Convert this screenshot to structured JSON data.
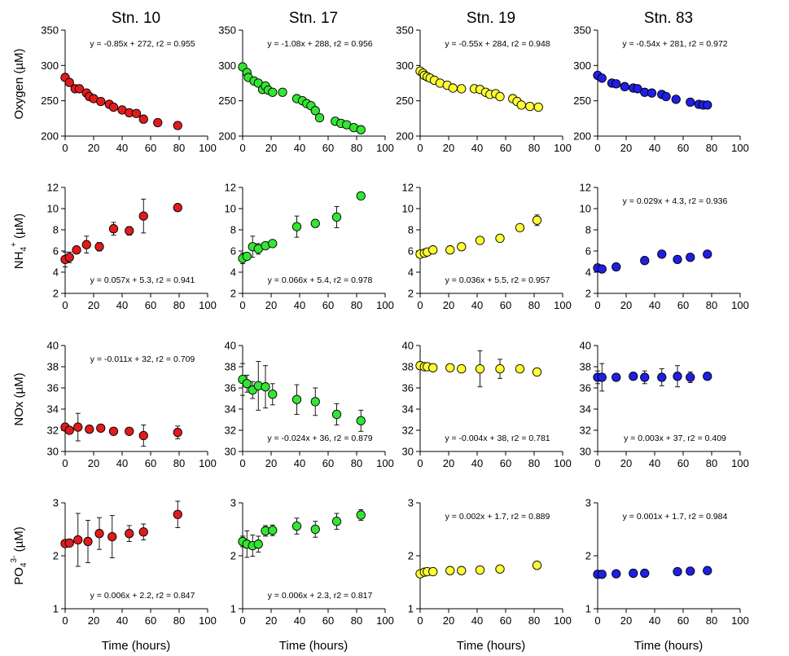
{
  "figure": {
    "xlabel": "Time (hours)",
    "station_titles": [
      "Stn. 10",
      "Stn. 17",
      "Stn. 19",
      "Stn. 83"
    ],
    "row_labels": {
      "oxygen": "Oxygen (µM)",
      "nh4": {
        "base": "NH",
        "sub": "4",
        "sup": "+",
        "unit": "(µM)"
      },
      "nox": "NOx (µM)",
      "po4": {
        "base": "PO",
        "sub": "4",
        "sup": "3-",
        "unit": "(µM)"
      }
    },
    "colors": {
      "Stn. 10": "#e31a1c",
      "Stn. 17": "#33e633",
      "Stn. 19": "#ffff33",
      "Stn. 83": "#1f1fe6"
    }
  },
  "chart_data": [
    {
      "type": "scatter",
      "row": "Oxygen",
      "station": "Stn. 10",
      "xlim": [
        0,
        100
      ],
      "ylim": [
        200,
        350
      ],
      "yticks": [
        200,
        250,
        300,
        350
      ],
      "xticks": [
        0,
        20,
        40,
        60,
        80,
        100
      ],
      "annotation": "y = -0.85x + 272, r2 = 0.955",
      "ann_pos": "top",
      "points": [
        [
          0,
          283
        ],
        [
          3,
          276
        ],
        [
          7,
          267
        ],
        [
          10,
          267
        ],
        [
          15,
          261
        ],
        [
          17,
          256
        ],
        [
          20,
          253
        ],
        [
          25,
          249
        ],
        [
          31,
          245
        ],
        [
          34,
          241
        ],
        [
          40,
          237
        ],
        [
          45,
          233
        ],
        [
          50,
          232
        ],
        [
          55,
          224
        ],
        [
          65,
          219
        ],
        [
          79,
          215
        ]
      ]
    },
    {
      "type": "scatter",
      "row": "Oxygen",
      "station": "Stn. 17",
      "xlim": [
        0,
        100
      ],
      "ylim": [
        200,
        350
      ],
      "yticks": [
        200,
        250,
        300,
        350
      ],
      "xticks": [
        0,
        20,
        40,
        60,
        80,
        100
      ],
      "annotation": "y = -1.08x + 288, r2 = 0.956",
      "ann_pos": "top",
      "points": [
        [
          0,
          298
        ],
        [
          3,
          290
        ],
        [
          4,
          283
        ],
        [
          8,
          278
        ],
        [
          11,
          275
        ],
        [
          14,
          266
        ],
        [
          16,
          271
        ],
        [
          18,
          265
        ],
        [
          21,
          262
        ],
        [
          28,
          262
        ],
        [
          38,
          253
        ],
        [
          42,
          250
        ],
        [
          45,
          246
        ],
        [
          48,
          243
        ],
        [
          51,
          236
        ],
        [
          54,
          226
        ],
        [
          65,
          221
        ],
        [
          69,
          218
        ],
        [
          73,
          216
        ],
        [
          78,
          212
        ],
        [
          83,
          209
        ]
      ]
    },
    {
      "type": "scatter",
      "row": "Oxygen",
      "station": "Stn. 19",
      "xlim": [
        0,
        100
      ],
      "ylim": [
        200,
        350
      ],
      "yticks": [
        200,
        250,
        300,
        350
      ],
      "xticks": [
        0,
        20,
        40,
        60,
        80,
        100
      ],
      "annotation": "y = -0.55x + 284, r2 = 0.948",
      "ann_pos": "top",
      "points": [
        [
          0,
          292
        ],
        [
          2,
          289
        ],
        [
          3,
          286
        ],
        [
          5,
          284
        ],
        [
          7,
          282
        ],
        [
          10,
          279
        ],
        [
          14,
          275
        ],
        [
          19,
          272
        ],
        [
          23,
          268
        ],
        [
          29,
          267
        ],
        [
          38,
          267
        ],
        [
          42,
          266
        ],
        [
          46,
          262
        ],
        [
          49,
          259
        ],
        [
          53,
          260
        ],
        [
          56,
          256
        ],
        [
          65,
          253
        ],
        [
          68,
          249
        ],
        [
          71,
          244
        ],
        [
          77,
          242
        ],
        [
          83,
          241
        ]
      ]
    },
    {
      "type": "scatter",
      "row": "Oxygen",
      "station": "Stn. 83",
      "xlim": [
        0,
        100
      ],
      "ylim": [
        200,
        350
      ],
      "yticks": [
        200,
        250,
        300,
        350
      ],
      "xticks": [
        0,
        20,
        40,
        60,
        80,
        100
      ],
      "annotation": "y = -0.54x + 281, r2 = 0.972",
      "ann_pos": "top",
      "points": [
        [
          0,
          286
        ],
        [
          3,
          282
        ],
        [
          10,
          275
        ],
        [
          13,
          274
        ],
        [
          19,
          270
        ],
        [
          25,
          268
        ],
        [
          28,
          267
        ],
        [
          33,
          262
        ],
        [
          38,
          261
        ],
        [
          45,
          259
        ],
        [
          48,
          256
        ],
        [
          55,
          252
        ],
        [
          65,
          248
        ],
        [
          71,
          245
        ],
        [
          74,
          244
        ],
        [
          77,
          244
        ]
      ]
    },
    {
      "type": "scatter",
      "row": "NH4+",
      "station": "Stn. 10",
      "xlim": [
        0,
        100
      ],
      "ylim": [
        2,
        12
      ],
      "yticks": [
        2,
        4,
        6,
        8,
        10,
        12
      ],
      "xticks": [
        0,
        20,
        40,
        60,
        80,
        100
      ],
      "annotation": "y = 0.057x + 5.3, r2 = 0.941",
      "ann_pos": "bottom",
      "points": [
        [
          0,
          5.2,
          0.7
        ],
        [
          3,
          5.4,
          0.5
        ],
        [
          8,
          6.1,
          0.3
        ],
        [
          15,
          6.6,
          0.8
        ],
        [
          24,
          6.4,
          0.4
        ],
        [
          34,
          8.1,
          0.6
        ],
        [
          45,
          7.9,
          0.4
        ],
        [
          55,
          9.3,
          1.6
        ],
        [
          79,
          10.1,
          0.2
        ]
      ]
    },
    {
      "type": "scatter",
      "row": "NH4+",
      "station": "Stn. 17",
      "xlim": [
        0,
        100
      ],
      "ylim": [
        2,
        12
      ],
      "yticks": [
        2,
        4,
        6,
        8,
        10,
        12
      ],
      "xticks": [
        0,
        20,
        40,
        60,
        80,
        100
      ],
      "annotation": "y = 0.066x + 5.4, r2 = 0.978",
      "ann_pos": "bottom",
      "points": [
        [
          0,
          5.3,
          0.5
        ],
        [
          3,
          5.5,
          0.4
        ],
        [
          7,
          6.4,
          1.0
        ],
        [
          11,
          6.2,
          0.5
        ],
        [
          16,
          6.5,
          0.4
        ],
        [
          21,
          6.7,
          0.2
        ],
        [
          38,
          8.3,
          1.0
        ],
        [
          51,
          8.6,
          0.2
        ],
        [
          66,
          9.2,
          1.0
        ],
        [
          83,
          11.2,
          0.3
        ]
      ]
    },
    {
      "type": "scatter",
      "row": "NH4+",
      "station": "Stn. 19",
      "xlim": [
        0,
        100
      ],
      "ylim": [
        2,
        12
      ],
      "yticks": [
        2,
        4,
        6,
        8,
        10,
        12
      ],
      "xticks": [
        0,
        20,
        40,
        60,
        80,
        100
      ],
      "annotation": "y = 0.036x + 5.5, r2 = 0.957",
      "ann_pos": "bottom",
      "points": [
        [
          0,
          5.7,
          0.2
        ],
        [
          3,
          5.8,
          0.2
        ],
        [
          5,
          5.9,
          0.2
        ],
        [
          9,
          6.1,
          0.2
        ],
        [
          21,
          6.1,
          0.3
        ],
        [
          29,
          6.4,
          0.2
        ],
        [
          42,
          7.0,
          0.4
        ],
        [
          56,
          7.2,
          0.2
        ],
        [
          70,
          8.2,
          0.2
        ],
        [
          82,
          8.9,
          0.5
        ]
      ]
    },
    {
      "type": "scatter",
      "row": "NH4+",
      "station": "Stn. 83",
      "xlim": [
        0,
        100
      ],
      "ylim": [
        2,
        12
      ],
      "yticks": [
        2,
        4,
        6,
        8,
        10,
        12
      ],
      "xticks": [
        0,
        20,
        40,
        60,
        80,
        100
      ],
      "annotation": "y = 0.029x + 4.3, r2 = 0.936",
      "ann_pos": "top",
      "points": [
        [
          0,
          4.4,
          0.2
        ],
        [
          3,
          4.3,
          0.2
        ],
        [
          13,
          4.5,
          0.4
        ],
        [
          33,
          5.1,
          0.2
        ],
        [
          45,
          5.7,
          0.2
        ],
        [
          56,
          5.2,
          0.2
        ],
        [
          65,
          5.4,
          0.2
        ],
        [
          77,
          5.7,
          0.3
        ]
      ]
    },
    {
      "type": "scatter",
      "row": "NOx",
      "station": "Stn. 10",
      "xlim": [
        0,
        100
      ],
      "ylim": [
        30,
        40
      ],
      "yticks": [
        30,
        32,
        34,
        36,
        38,
        40
      ],
      "xticks": [
        0,
        20,
        40,
        60,
        80,
        100
      ],
      "annotation": "y = -0.011x + 32, r2 = 0.709",
      "ann_pos": "top",
      "points": [
        [
          0,
          32.3,
          0.2
        ],
        [
          3,
          32.0,
          0.2
        ],
        [
          9,
          32.3,
          1.3
        ],
        [
          17,
          32.1,
          0.4
        ],
        [
          25,
          32.2,
          0.4
        ],
        [
          34,
          31.9,
          0.3
        ],
        [
          45,
          31.9,
          0.2
        ],
        [
          55,
          31.5,
          1.0
        ],
        [
          79,
          31.8,
          0.6
        ]
      ]
    },
    {
      "type": "scatter",
      "row": "NOx",
      "station": "Stn. 17",
      "xlim": [
        0,
        100
      ],
      "ylim": [
        30,
        40
      ],
      "yticks": [
        30,
        32,
        34,
        36,
        38,
        40
      ],
      "xticks": [
        0,
        20,
        40,
        60,
        80,
        100
      ],
      "annotation": "y = -0.024x + 36, r2 = 0.879",
      "ann_pos": "bottom",
      "points": [
        [
          0,
          36.8,
          1.5
        ],
        [
          3,
          36.4,
          0.8
        ],
        [
          7,
          35.8,
          0.8
        ],
        [
          11,
          36.2,
          2.3
        ],
        [
          16,
          36.1,
          2.0
        ],
        [
          21,
          35.4,
          1.0
        ],
        [
          38,
          34.9,
          1.4
        ],
        [
          51,
          34.7,
          1.3
        ],
        [
          66,
          33.5,
          1.0
        ],
        [
          83,
          32.9,
          1.0
        ]
      ]
    },
    {
      "type": "scatter",
      "row": "NOx",
      "station": "Stn. 19",
      "xlim": [
        0,
        100
      ],
      "ylim": [
        30,
        40
      ],
      "yticks": [
        30,
        32,
        34,
        36,
        38,
        40
      ],
      "xticks": [
        0,
        20,
        40,
        60,
        80,
        100
      ],
      "annotation": "y = -0.004x + 38, r2 = 0.781",
      "ann_pos": "bottom",
      "points": [
        [
          0,
          38.1,
          0.1
        ],
        [
          3,
          38.0,
          0.1
        ],
        [
          5,
          38.0,
          0.1
        ],
        [
          9,
          37.9,
          0.1
        ],
        [
          21,
          37.9,
          0.1
        ],
        [
          29,
          37.8,
          0.1
        ],
        [
          42,
          37.8,
          1.7
        ],
        [
          56,
          37.8,
          0.9
        ],
        [
          70,
          37.8,
          0.1
        ],
        [
          82,
          37.5,
          0.2
        ]
      ]
    },
    {
      "type": "scatter",
      "row": "NOx",
      "station": "Stn. 83",
      "xlim": [
        0,
        100
      ],
      "ylim": [
        30,
        40
      ],
      "yticks": [
        30,
        32,
        34,
        36,
        38,
        40
      ],
      "xticks": [
        0,
        20,
        40,
        60,
        80,
        100
      ],
      "annotation": "y = 0.003x + 37, r2 = 0.409",
      "ann_pos": "bottom",
      "points": [
        [
          0,
          37.0,
          0.6
        ],
        [
          3,
          37.0,
          1.3
        ],
        [
          13,
          37.0,
          0.1
        ],
        [
          25,
          37.1,
          0.3
        ],
        [
          33,
          37.0,
          0.6
        ],
        [
          45,
          37.0,
          0.8
        ],
        [
          56,
          37.1,
          1.0
        ],
        [
          65,
          37.0,
          0.5
        ],
        [
          77,
          37.1,
          0.2
        ]
      ]
    },
    {
      "type": "scatter",
      "row": "PO43-",
      "station": "Stn. 10",
      "xlim": [
        0,
        100
      ],
      "ylim": [
        1,
        3
      ],
      "yticks": [
        1,
        2,
        3
      ],
      "xticks": [
        0,
        20,
        40,
        60,
        80,
        100
      ],
      "annotation": "y = 0.006x + 2.2, r2 = 0.847",
      "ann_pos": "bottom",
      "points": [
        [
          0,
          2.23,
          0.08
        ],
        [
          3,
          2.24,
          0.08
        ],
        [
          9,
          2.3,
          0.5
        ],
        [
          16,
          2.27,
          0.4
        ],
        [
          24,
          2.42,
          0.3
        ],
        [
          33,
          2.36,
          0.4
        ],
        [
          45,
          2.42,
          0.15
        ],
        [
          55,
          2.45,
          0.15
        ],
        [
          79,
          2.78,
          0.25
        ]
      ]
    },
    {
      "type": "scatter",
      "row": "PO43-",
      "station": "Stn. 17",
      "xlim": [
        0,
        100
      ],
      "ylim": [
        1,
        3
      ],
      "yticks": [
        1,
        2,
        3
      ],
      "xticks": [
        0,
        20,
        40,
        60,
        80,
        100
      ],
      "annotation": "y = 0.006x + 2.3, r2 = 0.817",
      "ann_pos": "bottom",
      "points": [
        [
          0,
          2.27,
          0.1
        ],
        [
          3,
          2.22,
          0.25
        ],
        [
          7,
          2.19,
          0.2
        ],
        [
          11,
          2.22,
          0.15
        ],
        [
          16,
          2.47,
          0.1
        ],
        [
          21,
          2.48,
          0.1
        ],
        [
          38,
          2.56,
          0.15
        ],
        [
          51,
          2.5,
          0.15
        ],
        [
          66,
          2.65,
          0.15
        ],
        [
          83,
          2.77,
          0.1
        ]
      ]
    },
    {
      "type": "scatter",
      "row": "PO43-",
      "station": "Stn. 19",
      "xlim": [
        0,
        100
      ],
      "ylim": [
        1,
        3
      ],
      "yticks": [
        1,
        2,
        3
      ],
      "xticks": [
        0,
        20,
        40,
        60,
        80,
        100
      ],
      "annotation": "y = 0.002x + 1.7, r2 = 0.889",
      "ann_pos": "top",
      "points": [
        [
          0,
          1.66,
          0.03
        ],
        [
          3,
          1.69,
          0.03
        ],
        [
          5,
          1.7,
          0.03
        ],
        [
          9,
          1.7,
          0.03
        ],
        [
          21,
          1.72,
          0.03
        ],
        [
          29,
          1.72,
          0.03
        ],
        [
          42,
          1.73,
          0.03
        ],
        [
          56,
          1.75,
          0.03
        ],
        [
          82,
          1.82,
          0.03
        ]
      ]
    },
    {
      "type": "scatter",
      "row": "PO43-",
      "station": "Stn. 83",
      "xlim": [
        0,
        100
      ],
      "ylim": [
        1,
        3
      ],
      "yticks": [
        1,
        2,
        3
      ],
      "xticks": [
        0,
        20,
        40,
        60,
        80,
        100
      ],
      "annotation": "y = 0.001x + 1.7, r2 = 0.984",
      "ann_pos": "top",
      "points": [
        [
          0,
          1.65,
          0.03
        ],
        [
          3,
          1.65,
          0.03
        ],
        [
          13,
          1.66,
          0.03
        ],
        [
          25,
          1.67,
          0.03
        ],
        [
          33,
          1.67,
          0.03
        ],
        [
          56,
          1.7,
          0.03
        ],
        [
          65,
          1.71,
          0.03
        ],
        [
          77,
          1.72,
          0.03
        ]
      ]
    }
  ]
}
